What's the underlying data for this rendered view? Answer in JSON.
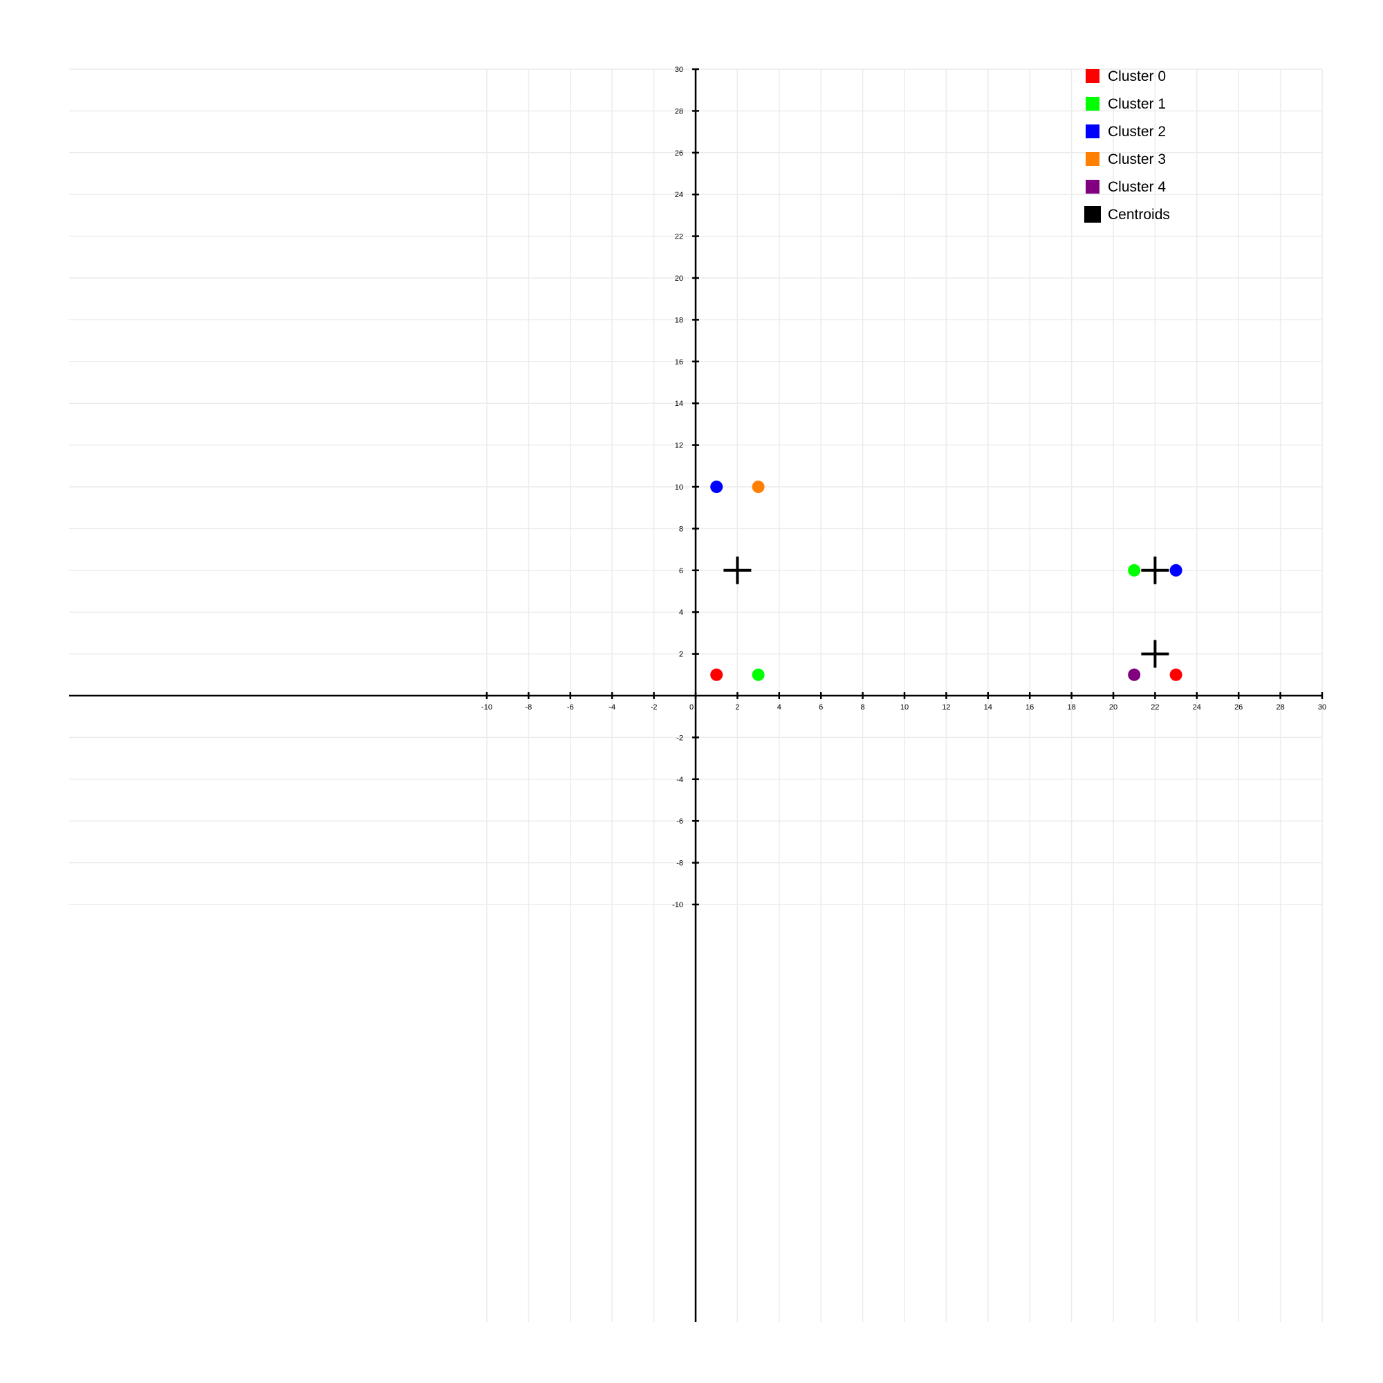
{
  "chart_data": {
    "type": "scatter",
    "title": "",
    "xlabel": "",
    "ylabel": "",
    "xlim": [
      -30,
      30
    ],
    "ylim": [
      -30,
      30
    ],
    "grid_x": [
      -10,
      30
    ],
    "grid_y": [
      -10,
      30
    ],
    "x_ticks": [
      -10,
      -8,
      -6,
      -4,
      -2,
      0,
      2,
      4,
      6,
      8,
      10,
      12,
      14,
      16,
      18,
      20,
      22,
      24,
      26,
      28,
      30
    ],
    "y_ticks": [
      -10,
      -8,
      -6,
      -4,
      -2,
      0,
      2,
      4,
      6,
      8,
      10,
      12,
      14,
      16,
      18,
      20,
      22,
      24,
      26,
      28,
      30
    ],
    "grid": true,
    "legend_position": "top-right",
    "series": [
      {
        "name": "Cluster 0",
        "color": "#ff0000",
        "points": [
          {
            "x": 1,
            "y": 1
          },
          {
            "x": 23,
            "y": 1
          }
        ]
      },
      {
        "name": "Cluster 1",
        "color": "#00ff00",
        "points": [
          {
            "x": 3,
            "y": 1
          },
          {
            "x": 21,
            "y": 6
          }
        ]
      },
      {
        "name": "Cluster 2",
        "color": "#0000ff",
        "points": [
          {
            "x": 1,
            "y": 10
          },
          {
            "x": 23,
            "y": 6
          }
        ]
      },
      {
        "name": "Cluster 3",
        "color": "#ff8000",
        "points": [
          {
            "x": 3,
            "y": 10
          }
        ]
      },
      {
        "name": "Cluster 4",
        "color": "#800080",
        "points": [
          {
            "x": 21,
            "y": 1
          }
        ]
      }
    ],
    "centroids": {
      "name": "Centroids",
      "color": "#000000",
      "points": [
        {
          "x": 2,
          "y": 6
        },
        {
          "x": 22,
          "y": 6
        },
        {
          "x": 22,
          "y": 2
        }
      ]
    }
  }
}
